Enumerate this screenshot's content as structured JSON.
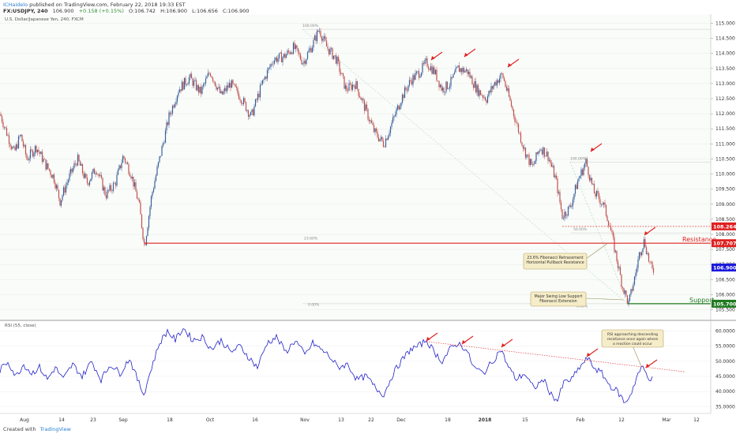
{
  "header": {
    "author": "ICHaidelo",
    "published": "published on TradingView.com, February 22, 2018 19:33 EST",
    "symbol": "FX:USDJPY, 240",
    "last": "106.900",
    "change": "+0.158 (+0.15%)",
    "open": "O:106.742",
    "high": "H:106.900",
    "low": "L:106.656",
    "close": "C:106.900"
  },
  "footer": {
    "created_with": "Created with",
    "brand": "TradingView"
  },
  "colors": {
    "up": "#3a5f9a",
    "down": "#c0504d",
    "resistance": "#e02020",
    "support": "#1e7a1e",
    "rsi": "#2020c8",
    "last_price": "#1a1adc",
    "background_tint": "#eef6ee"
  },
  "chart_data": [
    {
      "type": "candlestick",
      "title": "U.S. Dollar/Japanese Yen, 240, FXCM",
      "x_ticks": [
        "Aug",
        "14",
        "23",
        "Sep",
        "18",
        "Oct",
        "16",
        "Nov",
        "13",
        "22",
        "Dec",
        "18",
        "2018",
        "15",
        "Feb",
        "12",
        "Mar",
        "12"
      ],
      "y_ticks": [
        "115.000",
        "114.500",
        "114.000",
        "113.500",
        "113.000",
        "112.500",
        "112.000",
        "111.500",
        "111.000",
        "110.500",
        "110.000",
        "109.500",
        "109.000",
        "108.500",
        "108.000",
        "107.500",
        "107.000",
        "106.500",
        "106.000",
        "105.500"
      ],
      "ylim": [
        105.2,
        115.3
      ],
      "series_points": [
        [
          0,
          112.0
        ],
        [
          8,
          111.4
        ],
        [
          18,
          110.7
        ],
        [
          26,
          111.3
        ],
        [
          34,
          110.5
        ],
        [
          46,
          110.9
        ],
        [
          58,
          110.3
        ],
        [
          68,
          109.9
        ],
        [
          76,
          109.1
        ],
        [
          86,
          109.8
        ],
        [
          98,
          110.5
        ],
        [
          110,
          109.7
        ],
        [
          122,
          110.2
        ],
        [
          134,
          109.3
        ],
        [
          146,
          109.7
        ],
        [
          156,
          110.6
        ],
        [
          166,
          110.0
        ],
        [
          176,
          109.0
        ],
        [
          183,
          107.6
        ],
        [
          192,
          109.3
        ],
        [
          202,
          110.5
        ],
        [
          214,
          111.9
        ],
        [
          226,
          112.8
        ],
        [
          240,
          113.2
        ],
        [
          254,
          112.7
        ],
        [
          266,
          113.4
        ],
        [
          280,
          112.6
        ],
        [
          292,
          113.0
        ],
        [
          306,
          112.5
        ],
        [
          318,
          111.9
        ],
        [
          332,
          113.0
        ],
        [
          346,
          113.8
        ],
        [
          360,
          113.9
        ],
        [
          372,
          114.2
        ],
        [
          384,
          113.7
        ],
        [
          396,
          114.3
        ],
        [
          404,
          114.8
        ],
        [
          414,
          114.2
        ],
        [
          426,
          113.8
        ],
        [
          438,
          112.8
        ],
        [
          450,
          113.0
        ],
        [
          462,
          112.2
        ],
        [
          474,
          111.4
        ],
        [
          486,
          111.0
        ],
        [
          498,
          111.8
        ],
        [
          508,
          112.5
        ],
        [
          520,
          113.1
        ],
        [
          532,
          113.4
        ],
        [
          540,
          113.7
        ],
        [
          550,
          113.4
        ],
        [
          560,
          112.8
        ],
        [
          570,
          113.0
        ],
        [
          580,
          113.5
        ],
        [
          592,
          113.4
        ],
        [
          604,
          112.8
        ],
        [
          616,
          112.5
        ],
        [
          626,
          113.0
        ],
        [
          636,
          113.3
        ],
        [
          646,
          112.4
        ],
        [
          656,
          111.5
        ],
        [
          664,
          110.8
        ],
        [
          674,
          110.2
        ],
        [
          684,
          110.9
        ],
        [
          694,
          110.6
        ],
        [
          704,
          109.8
        ],
        [
          712,
          108.6
        ],
        [
          722,
          108.9
        ],
        [
          732,
          109.8
        ],
        [
          742,
          110.4
        ],
        [
          752,
          109.4
        ],
        [
          764,
          109.0
        ],
        [
          772,
          108.3
        ],
        [
          780,
          107.3
        ],
        [
          788,
          106.3
        ],
        [
          796,
          105.7
        ],
        [
          804,
          106.6
        ],
        [
          810,
          107.4
        ],
        [
          816,
          107.8
        ],
        [
          822,
          107.1
        ],
        [
          826,
          106.8
        ]
      ],
      "annotations": {
        "resistance_label": "Resistance",
        "support_label": "Support",
        "resistance_price": "107.707",
        "resistance_level": 107.707,
        "upper_price": "108.264",
        "upper_level": 108.264,
        "support_price": "105.700",
        "support_level": 105.7,
        "last_price": "106.900",
        "last_level": 106.9,
        "fib_labels": [
          "100.00%",
          "23.60%",
          "0.00%",
          "100.00%",
          "50.00%",
          "0.00%"
        ],
        "callout_1": [
          "23.6% Fibonacci Retracement",
          "Horizontal Pullback Resistance"
        ],
        "callout_2": [
          "Major Swing Low Support",
          "Fibonacci Extension"
        ]
      }
    },
    {
      "type": "line",
      "title": "RSI (55, close)",
      "y_ticks": [
        "60.0000",
        "55.0000",
        "50.0000",
        "45.0000",
        "40.0000",
        "35.0000"
      ],
      "ylim": [
        33,
        63
      ],
      "callout": [
        "RSI approaching descending",
        "resistance once again where",
        "a reaction  could occur"
      ],
      "series_points": [
        [
          0,
          47
        ],
        [
          10,
          50
        ],
        [
          20,
          45
        ],
        [
          30,
          49
        ],
        [
          40,
          46
        ],
        [
          50,
          48
        ],
        [
          60,
          44
        ],
        [
          70,
          48
        ],
        [
          80,
          44
        ],
        [
          92,
          49
        ],
        [
          104,
          45
        ],
        [
          116,
          50
        ],
        [
          128,
          44
        ],
        [
          140,
          49
        ],
        [
          152,
          46
        ],
        [
          164,
          51
        ],
        [
          174,
          44
        ],
        [
          182,
          39
        ],
        [
          192,
          48
        ],
        [
          202,
          56
        ],
        [
          212,
          60
        ],
        [
          222,
          57
        ],
        [
          232,
          61
        ],
        [
          244,
          57
        ],
        [
          256,
          58
        ],
        [
          268,
          54
        ],
        [
          280,
          57
        ],
        [
          292,
          53
        ],
        [
          304,
          55
        ],
        [
          316,
          51
        ],
        [
          326,
          48
        ],
        [
          338,
          56
        ],
        [
          350,
          58
        ],
        [
          362,
          53
        ],
        [
          374,
          57
        ],
        [
          386,
          52
        ],
        [
          396,
          56
        ],
        [
          406,
          54
        ],
        [
          416,
          52
        ],
        [
          428,
          48
        ],
        [
          440,
          49
        ],
        [
          452,
          44
        ],
        [
          464,
          45
        ],
        [
          476,
          41
        ],
        [
          486,
          39
        ],
        [
          498,
          46
        ],
        [
          508,
          50
        ],
        [
          520,
          54
        ],
        [
          530,
          55
        ],
        [
          540,
          57
        ],
        [
          550,
          53
        ],
        [
          560,
          50
        ],
        [
          570,
          54
        ],
        [
          580,
          56
        ],
        [
          590,
          54
        ],
        [
          600,
          48
        ],
        [
          612,
          46
        ],
        [
          624,
          50
        ],
        [
          634,
          54
        ],
        [
          644,
          48
        ],
        [
          654,
          44
        ],
        [
          664,
          46
        ],
        [
          676,
          41
        ],
        [
          688,
          44
        ],
        [
          698,
          39
        ],
        [
          706,
          37
        ],
        [
          714,
          43
        ],
        [
          724,
          44
        ],
        [
          734,
          48
        ],
        [
          744,
          51
        ],
        [
          752,
          48
        ],
        [
          762,
          46
        ],
        [
          772,
          42
        ],
        [
          782,
          40
        ],
        [
          792,
          36
        ],
        [
          800,
          40
        ],
        [
          808,
          46
        ],
        [
          814,
          48
        ],
        [
          820,
          45
        ],
        [
          826,
          44
        ]
      ]
    }
  ]
}
